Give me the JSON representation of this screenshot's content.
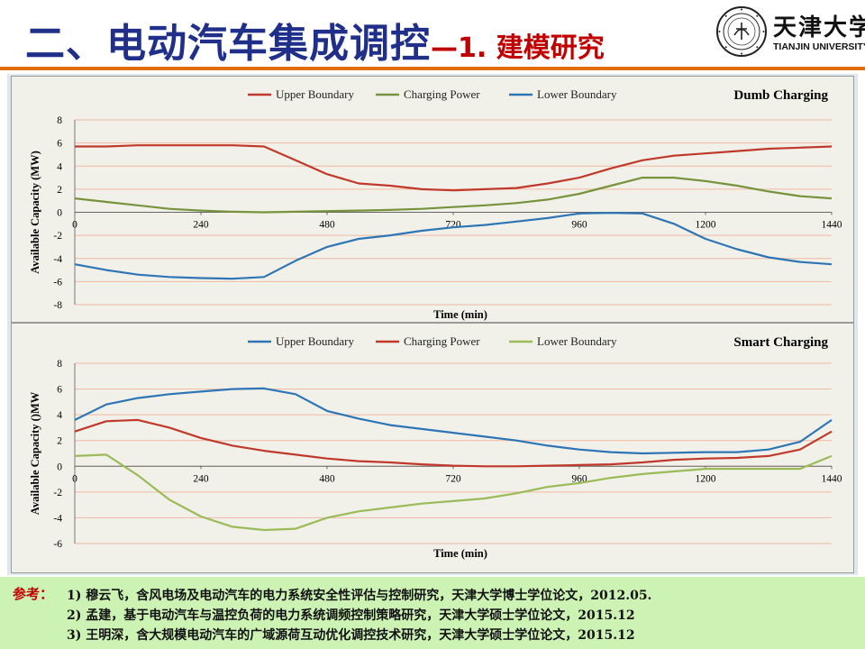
{
  "header": {
    "title_main": "二、电动汽车集成调控",
    "title_sub": "—1. 建模研究",
    "university_cn": "天津大学",
    "university_en": "TIANJIN UNIVERSITY",
    "seal_icon": "university-seal-icon"
  },
  "colors": {
    "title_blue": "#1f2f8a",
    "title_red": "#c00000",
    "rule_orange": "#e36c0a",
    "refs_bg": "#ccf2b4",
    "dark_red": "#c0392b",
    "olive_green": "#77933c",
    "steel_blue": "#2e75b6",
    "light_green": "#9bbb59"
  },
  "references": {
    "label": "参考：",
    "items": [
      "1) 穆云飞，含风电场及电动汽车的电力系统安全性评估与控制研究，天津大学博士学位论文，2012.05.",
      "2) 孟建，基于电动汽车与温控负荷的电力系统调频控制策略研究，天津大学硕士学位论文，2015.12",
      "3) 王明深，含大规模电动汽车的广域源荷互动优化调控技术研究，天津大学硕士学位论文，2015.12"
    ]
  },
  "chart_data": [
    {
      "type": "line",
      "title": "Dumb Charging",
      "xlabel": "Time (min)",
      "ylabel": "Available Capacity (MW)",
      "xlim": [
        0,
        1440
      ],
      "ylim": [
        -8,
        8
      ],
      "xticks": [
        "0",
        "240",
        "480",
        "720",
        "960",
        "1200",
        "1440"
      ],
      "yticks": [
        "8",
        "6",
        "4",
        "2",
        "0",
        "-2",
        "-4",
        "-6",
        "-8"
      ],
      "grid": true,
      "legend_position": "top",
      "x": [
        0,
        60,
        120,
        180,
        240,
        300,
        360,
        420,
        480,
        540,
        600,
        660,
        720,
        780,
        840,
        900,
        960,
        1020,
        1080,
        1140,
        1200,
        1260,
        1320,
        1380,
        1440
      ],
      "series": [
        {
          "name": "Upper Boundary",
          "color": "#c0392b",
          "values": [
            5.7,
            5.7,
            5.8,
            5.8,
            5.8,
            5.8,
            5.7,
            4.5,
            3.3,
            2.5,
            2.3,
            2.0,
            1.9,
            2.0,
            2.1,
            2.5,
            3.0,
            3.8,
            4.5,
            4.9,
            5.1,
            5.3,
            5.5,
            5.6,
            5.7
          ]
        },
        {
          "name": "Charging Power",
          "color": "#77933c",
          "values": [
            1.2,
            0.9,
            0.6,
            0.3,
            0.15,
            0.05,
            0.0,
            0.05,
            0.1,
            0.15,
            0.2,
            0.3,
            0.45,
            0.6,
            0.8,
            1.1,
            1.6,
            2.3,
            3.0,
            3.0,
            2.7,
            2.3,
            1.8,
            1.4,
            1.2
          ]
        },
        {
          "name": "Lower Boundary",
          "color": "#2e75b6",
          "values": [
            -4.5,
            -5.0,
            -5.4,
            -5.6,
            -5.7,
            -5.75,
            -5.6,
            -4.2,
            -3.0,
            -2.3,
            -2.0,
            -1.6,
            -1.3,
            -1.1,
            -0.8,
            -0.5,
            -0.1,
            -0.05,
            -0.1,
            -1.0,
            -2.3,
            -3.2,
            -3.9,
            -4.3,
            -4.5
          ]
        }
      ]
    },
    {
      "type": "line",
      "title": "Smart Charging",
      "xlabel": "Time (min)",
      "ylabel": "Available Capacity ()MW",
      "xlim": [
        0,
        1440
      ],
      "ylim": [
        -6,
        8
      ],
      "xticks": [
        "0",
        "240",
        "480",
        "720",
        "960",
        "1200",
        "1440"
      ],
      "yticks": [
        "8",
        "6",
        "4",
        "2",
        "0",
        "-2",
        "-4",
        "-6"
      ],
      "grid": true,
      "legend_position": "top",
      "x": [
        0,
        60,
        120,
        180,
        240,
        300,
        360,
        420,
        480,
        540,
        600,
        660,
        720,
        780,
        840,
        900,
        960,
        1020,
        1080,
        1140,
        1200,
        1260,
        1320,
        1380,
        1440
      ],
      "series": [
        {
          "name": "Upper Boundary",
          "color": "#2e75b6",
          "values": [
            3.6,
            4.8,
            5.3,
            5.6,
            5.8,
            6.0,
            6.05,
            5.6,
            4.3,
            3.7,
            3.2,
            2.9,
            2.6,
            2.3,
            2.0,
            1.6,
            1.3,
            1.1,
            1.0,
            1.05,
            1.1,
            1.1,
            1.3,
            1.9,
            3.6
          ]
        },
        {
          "name": "Charging Power",
          "color": "#c0392b",
          "values": [
            2.7,
            3.5,
            3.6,
            3.0,
            2.2,
            1.6,
            1.2,
            0.9,
            0.6,
            0.4,
            0.3,
            0.15,
            0.05,
            0.0,
            0.0,
            0.05,
            0.1,
            0.15,
            0.3,
            0.5,
            0.6,
            0.65,
            0.8,
            1.3,
            2.7
          ]
        },
        {
          "name": "Lower Boundary",
          "color": "#9bbb59",
          "values": [
            0.8,
            0.9,
            -0.7,
            -2.6,
            -3.9,
            -4.7,
            -4.95,
            -4.85,
            -4.0,
            -3.5,
            -3.2,
            -2.9,
            -2.7,
            -2.5,
            -2.1,
            -1.6,
            -1.3,
            -0.9,
            -0.6,
            -0.4,
            -0.2,
            -0.2,
            -0.2,
            -0.2,
            0.8
          ]
        }
      ]
    }
  ]
}
